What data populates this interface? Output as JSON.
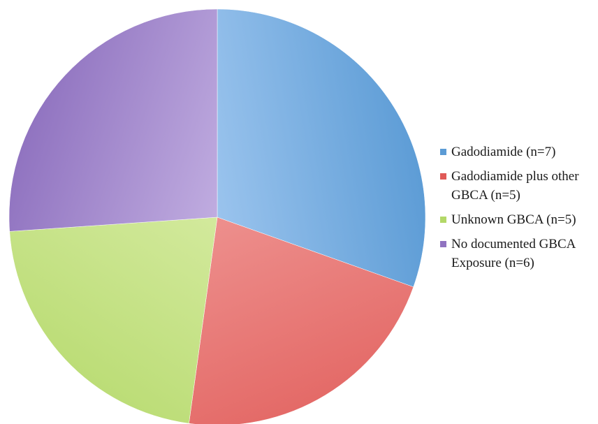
{
  "chart_data": {
    "type": "pie",
    "title": "",
    "start_angle_deg": 0,
    "direction": "clockwise",
    "slices": [
      {
        "label": "Gadodiamide (n=7)",
        "value": 7,
        "color": "#5b9bd5",
        "color_light": "#a9cdf3"
      },
      {
        "label": "Gadodiamide plus other GBCA (n=5)",
        "value": 5,
        "color": "#e05a57",
        "color_light": "#f4aaa8"
      },
      {
        "label": "Unknown GBCA (n=5)",
        "value": 5,
        "color": "#b3d868",
        "color_light": "#e2f2b6"
      },
      {
        "label": "No documented GBCA Exposure (n=6)",
        "value": 6,
        "color": "#9073c0",
        "color_light": "#c9b7e6"
      }
    ],
    "legend": {
      "position": "right"
    }
  }
}
